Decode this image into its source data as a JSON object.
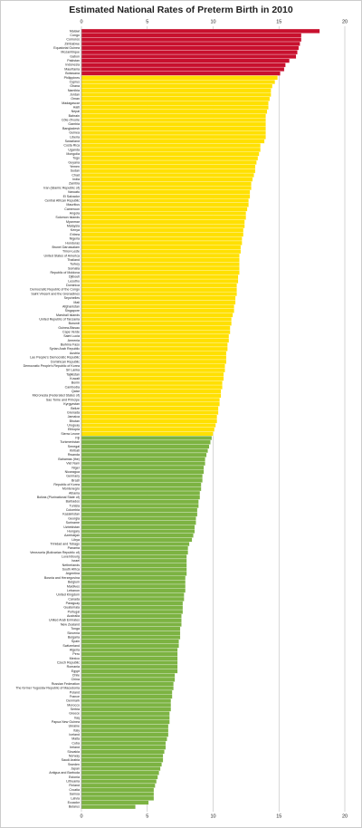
{
  "chart_data": {
    "type": "bar",
    "orientation": "horizontal",
    "title": "Estimated National Rates of Preterm Birth in 2010",
    "xlim": [
      0,
      20
    ],
    "xticks": [
      0,
      5,
      10,
      15,
      20
    ],
    "grid": true,
    "series": [
      {
        "color": "#c8102e",
        "categories": [
          "Malawi",
          "Congo",
          "Comoros",
          "Zimbabwe",
          "Equatorial Guinea",
          "Mozambique",
          "Gabon",
          "Pakistan",
          "Indonesia",
          "Mauritania",
          "Botswana"
        ],
        "values": [
          18.1,
          16.7,
          16.7,
          16.6,
          16.5,
          16.4,
          16.3,
          15.8,
          15.5,
          15.4,
          15.1
        ]
      },
      {
        "color": "#ffe000",
        "categories": [
          "Philippines",
          "Cyprus",
          "Ghana",
          "Namibia",
          "Jordan",
          "Oman",
          "Madagascar",
          "Haiti",
          "Nepal",
          "Bahrain",
          "Côte d'Ivoire",
          "Gambia",
          "Bangladesh",
          "Guinea",
          "Liberia",
          "Swaziland",
          "Costa Rica",
          "Uganda",
          "Mongolia",
          "Togo",
          "Guyana",
          "Yemen",
          "Sudan",
          "Chad",
          "India",
          "Zambia",
          "Iran (Islamic Republic of)",
          "Vanuatu",
          "El Salvador",
          "Central African Republic",
          "Mauritius",
          "Cameroon",
          "Angola",
          "Solomon Islands",
          "Myanmar",
          "Malaysia",
          "Kenya",
          "Eritrea",
          "Nigeria",
          "Honduras",
          "Brunei Darussalam",
          "Timor-Leste",
          "United States of America",
          "Thailand",
          "Turkey",
          "Somalia",
          "Republic of Moldova",
          "Djibouti",
          "Lesotho",
          "Dominica",
          "Democratic Republic of the Congo",
          "Saint Vincent and the Grenadines",
          "Seychelles",
          "Mali",
          "Afghanistan",
          "Singapore",
          "Marshall Islands",
          "United Republic of Tanzania",
          "Burundi",
          "Guinea-Bissau",
          "Cape Verde",
          "Saint Lucia",
          "Armenia",
          "Burkina Faso",
          "Syrian Arab Republic",
          "Austria",
          "Lao People's Democratic Republic",
          "Dominican Republic",
          "Democratic People's Republic of Korea",
          "Sri Lanka",
          "Tajikistan",
          "Kuwait",
          "Benin",
          "Cambodia",
          "Qatar",
          "Micronesia (Federated States of)",
          "Sao Tome and Principe",
          "Kyrgyzstan",
          "Belize",
          "Grenada",
          "Jamaica",
          "Bhutan",
          "Uruguay",
          "Ethiopia",
          "Sierra Leone"
        ],
        "values": [
          14.9,
          14.7,
          14.5,
          14.4,
          14.4,
          14.3,
          14.2,
          14.2,
          14.1,
          14.0,
          14.0,
          14.0,
          14.0,
          14.0,
          14.0,
          13.9,
          13.6,
          13.6,
          13.5,
          13.4,
          13.3,
          13.2,
          13.2,
          13.1,
          13.0,
          12.9,
          12.9,
          12.8,
          12.8,
          12.7,
          12.7,
          12.6,
          12.5,
          12.5,
          12.4,
          12.4,
          12.3,
          12.3,
          12.2,
          12.2,
          12.1,
          12.1,
          12.0,
          12.0,
          12.0,
          12.0,
          12.0,
          11.9,
          11.9,
          11.8,
          11.8,
          11.8,
          11.7,
          11.7,
          11.6,
          11.6,
          11.5,
          11.4,
          11.4,
          11.3,
          11.3,
          11.2,
          11.2,
          11.1,
          11.1,
          11.0,
          11.0,
          11.0,
          10.9,
          10.9,
          10.8,
          10.8,
          10.7,
          10.7,
          10.6,
          10.6,
          10.5,
          10.5,
          10.4,
          10.4,
          10.3,
          10.3,
          10.2,
          10.1,
          10.0
        ]
      },
      {
        "color": "#7cb342",
        "categories": [
          "Fiji",
          "Turkmenistan",
          "Senegal",
          "Kiribati",
          "Rwanda",
          "Bahamas (the)",
          "Viet Nam",
          "Niger",
          "Nicaragua",
          "Germany",
          "Brazil",
          "Republic of Korea",
          "Montenegro",
          "Albania",
          "Bolivia (Plurinational State of)",
          "Barbados",
          "Tunisia",
          "Colombia",
          "Kazakhstan",
          "Georgia",
          "Suriname",
          "Uzbekistan",
          "Hungary",
          "Azerbaijan",
          "Libya",
          "Trinidad and Tobago",
          "Panama",
          "Venezuela (Bolivarian Republic of)",
          "Luxembourg",
          "Israel",
          "Netherlands",
          "South Africa",
          "Argentina",
          "Bosnia and Herzegovina",
          "Belgium",
          "Maldives",
          "Lebanon",
          "United Kingdom",
          "Canada",
          "Paraguay",
          "Guatemala",
          "Portugal",
          "Australia",
          "United Arab Emirates",
          "New Zealand",
          "Tonga",
          "Slovenia",
          "Bulgaria",
          "Spain",
          "Switzerland",
          "Algeria",
          "Peru",
          "Mexico",
          "Czech Republic",
          "Romania",
          "Egypt",
          "Chile",
          "China",
          "Russian Federation",
          "The former Yugoslav Republic of Macedonia",
          "Poland",
          "France",
          "Denmark",
          "Morocco",
          "Serbia",
          "Greece",
          "Iraq",
          "Papua New Guinea",
          "Ukraine",
          "Italy",
          "Iceland",
          "Malta",
          "Cuba",
          "Ireland",
          "Slovakia",
          "Norway",
          "Saudi Arabia",
          "Sweden",
          "Japan",
          "Antigua and Barbuda",
          "Estonia",
          "Lithuania",
          "Finland",
          "Croatia",
          "Samoa",
          "Latvia",
          "Ecuador",
          "Belarus"
        ],
        "values": [
          9.9,
          9.8,
          9.7,
          9.6,
          9.5,
          9.4,
          9.4,
          9.3,
          9.3,
          9.2,
          9.2,
          9.1,
          9.1,
          9.0,
          9.0,
          8.9,
          8.9,
          8.8,
          8.8,
          8.7,
          8.7,
          8.6,
          8.6,
          8.5,
          8.4,
          8.2,
          8.1,
          8.1,
          8.0,
          8.0,
          8.0,
          8.0,
          8.0,
          7.9,
          7.9,
          7.9,
          7.9,
          7.8,
          7.8,
          7.7,
          7.7,
          7.7,
          7.6,
          7.6,
          7.6,
          7.5,
          7.5,
          7.5,
          7.4,
          7.4,
          7.3,
          7.3,
          7.3,
          7.3,
          7.3,
          7.3,
          7.1,
          7.1,
          7.0,
          7.0,
          6.9,
          6.9,
          6.8,
          6.8,
          6.8,
          6.7,
          6.7,
          6.7,
          6.6,
          6.6,
          6.6,
          6.5,
          6.4,
          6.4,
          6.3,
          6.2,
          6.2,
          6.1,
          6.0,
          5.9,
          5.8,
          5.7,
          5.6,
          5.5,
          5.5,
          5.5,
          5.1,
          4.1
        ]
      }
    ]
  }
}
